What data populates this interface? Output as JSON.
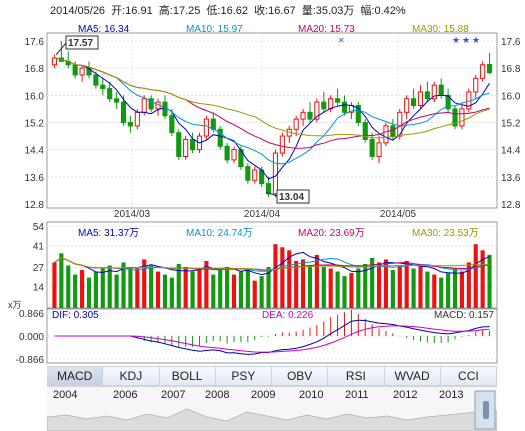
{
  "header": {
    "date": "2014/05/26",
    "open": "开:16.91",
    "high": "高:17.25",
    "low": "低:16.62",
    "close": "收:16.67",
    "volume": "量:35.03万",
    "change": "幅:0.42%"
  },
  "price_panel": {
    "ma_labels": [
      {
        "text": "MA5: 16.34",
        "color": "#0000cc"
      },
      {
        "text": "MA10: 15.97",
        "color": "#0099cc"
      },
      {
        "text": "MA20: 15.73",
        "color": "#cc0066"
      },
      {
        "text": "MA30: 15.88",
        "color": "#999900"
      }
    ],
    "y_ticks": [
      "17.6",
      "16.8",
      "16.0",
      "15.2",
      "14.4",
      "13.6",
      "12.8"
    ],
    "x_ticks": [
      "2014/03",
      "2014/04",
      "2014/05"
    ],
    "high_marker": "17.57",
    "low_marker": "13.04"
  },
  "volume_panel": {
    "ma_labels": [
      {
        "text": "MA5: 31.37万",
        "color": "#0000cc"
      },
      {
        "text": "MA10: 24.74万",
        "color": "#0099cc"
      },
      {
        "text": "MA20: 23.69万",
        "color": "#cc0066"
      },
      {
        "text": "MA30: 23.53万",
        "color": "#999900"
      }
    ],
    "y_ticks": [
      "54",
      "41",
      "27",
      "14"
    ],
    "unit": "x万"
  },
  "macd_panel": {
    "dif_label": "DIF: 0.305",
    "dea_label": "DEA: 0.226",
    "macd_label": "MACD: 0.157",
    "y_ticks": [
      "0.866",
      "0.000",
      "-0.866"
    ]
  },
  "tabs": [
    "MACD",
    "KDJ",
    "BOLL",
    "PSY",
    "OBV",
    "RSI",
    "WVAD",
    "CCI"
  ],
  "active_tab": "MACD",
  "years": [
    "2004",
    "2006",
    "2007",
    "2008",
    "2009",
    "2010",
    "2011",
    "2012",
    "2013"
  ],
  "colors": {
    "up": "#ee1111",
    "down": "#119911",
    "grid": "#e0e0e0",
    "axis": "#999999"
  },
  "chart_data": {
    "type": "candlestick",
    "x_range": [
      "2014/01",
      "2014/05/26"
    ],
    "y_range": [
      12.8,
      17.6
    ],
    "ohlc": [
      [
        16.9,
        17.2,
        16.8,
        17.1
      ],
      [
        17.1,
        17.6,
        17.0,
        17.0
      ],
      [
        17.0,
        17.3,
        16.8,
        16.9
      ],
      [
        16.9,
        17.0,
        16.5,
        16.6
      ],
      [
        16.6,
        16.9,
        16.4,
        16.8
      ],
      [
        16.8,
        17.0,
        16.5,
        16.6
      ],
      [
        16.6,
        16.7,
        16.2,
        16.3
      ],
      [
        16.3,
        16.5,
        16.0,
        16.2
      ],
      [
        16.2,
        16.4,
        15.8,
        15.9
      ],
      [
        15.9,
        16.1,
        15.6,
        15.8
      ],
      [
        15.8,
        16.0,
        15.1,
        15.2
      ],
      [
        15.2,
        15.4,
        14.9,
        15.1
      ],
      [
        15.1,
        15.6,
        15.0,
        15.5
      ],
      [
        15.5,
        16.0,
        15.4,
        15.9
      ],
      [
        15.9,
        16.0,
        15.5,
        15.6
      ],
      [
        15.6,
        15.9,
        15.4,
        15.8
      ],
      [
        15.8,
        16.0,
        15.3,
        15.4
      ],
      [
        15.4,
        15.6,
        14.8,
        14.9
      ],
      [
        14.9,
        15.0,
        14.1,
        14.2
      ],
      [
        14.2,
        14.8,
        14.1,
        14.7
      ],
      [
        14.7,
        14.9,
        14.3,
        14.4
      ],
      [
        14.4,
        14.9,
        14.3,
        14.8
      ],
      [
        14.8,
        15.4,
        14.7,
        15.3
      ],
      [
        15.3,
        15.5,
        14.9,
        15.0
      ],
      [
        15.0,
        15.1,
        14.4,
        14.5
      ],
      [
        14.5,
        14.6,
        14.0,
        14.1
      ],
      [
        14.1,
        14.5,
        14.0,
        14.4
      ],
      [
        14.4,
        14.5,
        13.8,
        13.9
      ],
      [
        13.9,
        14.0,
        13.4,
        13.5
      ],
      [
        13.5,
        13.9,
        13.4,
        13.8
      ],
      [
        13.8,
        13.9,
        13.3,
        13.4
      ],
      [
        13.4,
        13.6,
        13.0,
        13.1
      ],
      [
        13.1,
        14.4,
        13.0,
        14.3
      ],
      [
        14.3,
        14.9,
        14.2,
        14.8
      ],
      [
        14.8,
        15.1,
        14.6,
        15.0
      ],
      [
        15.0,
        15.4,
        14.8,
        15.3
      ],
      [
        15.3,
        15.6,
        15.1,
        15.5
      ],
      [
        15.5,
        15.8,
        15.2,
        15.3
      ],
      [
        15.3,
        15.9,
        15.2,
        15.8
      ],
      [
        15.8,
        16.1,
        15.5,
        15.6
      ],
      [
        15.6,
        16.0,
        15.5,
        15.9
      ],
      [
        15.9,
        16.2,
        15.7,
        15.8
      ],
      [
        15.8,
        16.0,
        15.4,
        15.5
      ],
      [
        15.5,
        15.8,
        15.3,
        15.7
      ],
      [
        15.7,
        15.8,
        15.1,
        15.2
      ],
      [
        15.2,
        15.3,
        14.6,
        14.7
      ],
      [
        14.7,
        14.9,
        14.1,
        14.2
      ],
      [
        14.2,
        14.8,
        14.0,
        14.6
      ],
      [
        14.6,
        15.2,
        14.5,
        15.1
      ],
      [
        15.1,
        15.3,
        14.7,
        14.8
      ],
      [
        14.8,
        15.6,
        14.7,
        15.5
      ],
      [
        15.5,
        16.0,
        15.3,
        15.9
      ],
      [
        15.9,
        16.2,
        15.6,
        15.7
      ],
      [
        15.7,
        16.3,
        15.6,
        16.1
      ],
      [
        16.1,
        16.4,
        15.8,
        15.9
      ],
      [
        15.9,
        16.4,
        15.8,
        16.3
      ],
      [
        16.3,
        16.5,
        15.9,
        16.0
      ],
      [
        16.0,
        16.2,
        15.5,
        15.6
      ],
      [
        15.6,
        15.7,
        15.0,
        15.1
      ],
      [
        15.1,
        15.7,
        15.0,
        15.6
      ],
      [
        15.6,
        16.2,
        15.5,
        16.1
      ],
      [
        16.1,
        16.6,
        15.9,
        16.5
      ],
      [
        16.5,
        17.0,
        16.4,
        16.9
      ],
      [
        16.91,
        17.25,
        16.62,
        16.67
      ]
    ]
  }
}
